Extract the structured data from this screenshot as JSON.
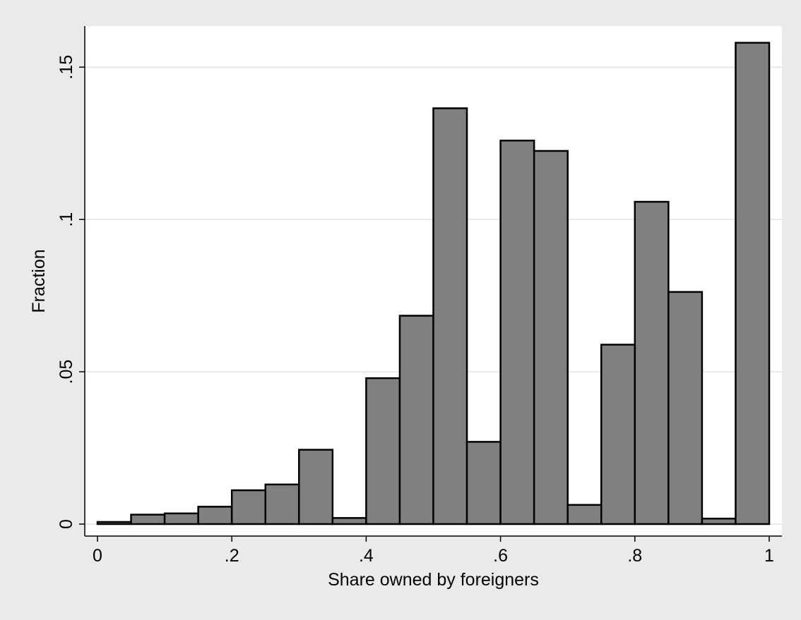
{
  "chart_data": {
    "type": "bar",
    "title": "",
    "xlabel": "Share owned by foreigners",
    "ylabel": "Fraction",
    "xlim": [
      0,
      1
    ],
    "ylim": [
      0,
      0.16
    ],
    "bin_width": 0.05,
    "x": [
      0.0,
      0.05,
      0.1,
      0.15,
      0.2,
      0.25,
      0.3,
      0.35,
      0.4,
      0.45,
      0.5,
      0.55,
      0.6,
      0.65,
      0.7,
      0.75,
      0.8,
      0.85,
      0.9,
      0.95
    ],
    "values": [
      0.0007,
      0.0031,
      0.0035,
      0.0057,
      0.0111,
      0.013,
      0.0244,
      0.002,
      0.0479,
      0.0684,
      0.1365,
      0.027,
      0.1259,
      0.1225,
      0.0063,
      0.0589,
      0.1058,
      0.0762,
      0.0018,
      0.158
    ],
    "x_ticks": [
      {
        "value": 0,
        "label": "0"
      },
      {
        "value": 0.2,
        "label": ".2"
      },
      {
        "value": 0.4,
        "label": ".4"
      },
      {
        "value": 0.6,
        "label": ".6"
      },
      {
        "value": 0.8,
        "label": ".8"
      },
      {
        "value": 1,
        "label": "1"
      }
    ],
    "y_ticks": [
      {
        "value": 0,
        "label": "0"
      },
      {
        "value": 0.05,
        "label": ".05"
      },
      {
        "value": 0.1,
        "label": ".1"
      },
      {
        "value": 0.15,
        "label": ".15"
      }
    ],
    "grid": true,
    "colors": {
      "background": "#eaeaea",
      "plot_background": "#ffffff",
      "bar_fill": "#808080",
      "bar_stroke": "#000000",
      "grid": "#e8e8e8",
      "axis": "#000000"
    }
  }
}
